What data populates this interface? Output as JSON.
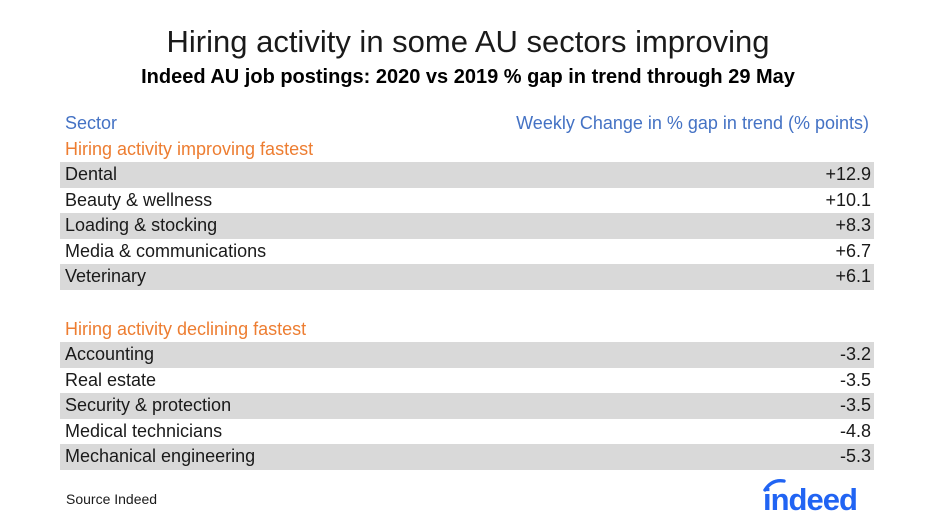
{
  "header": {
    "title": "Hiring activity in some AU sectors improving",
    "subtitle": "Indeed AU job postings: 2020 vs 2019 % gap in trend through 29 May"
  },
  "colors": {
    "header_text": "#4472c4",
    "section_text": "#ed7d31",
    "row_shade": "#d9d9d9",
    "logo_blue": "#2164f3"
  },
  "chart_data": {
    "type": "table",
    "columns": [
      "Sector",
      "Weekly Change in % gap in trend (% points)"
    ],
    "groups": [
      {
        "label": "Hiring activity improving fastest",
        "rows": [
          {
            "sector": "Dental",
            "value": "+12.9"
          },
          {
            "sector": "Beauty & wellness",
            "value": "+10.1"
          },
          {
            "sector": "Loading & stocking",
            "value": "+8.3"
          },
          {
            "sector": "Media & communications",
            "value": "+6.7"
          },
          {
            "sector": "Veterinary",
            "value": "+6.1"
          }
        ]
      },
      {
        "label": "Hiring activity declining fastest",
        "rows": [
          {
            "sector": "Accounting",
            "value": "-3.2"
          },
          {
            "sector": "Real estate",
            "value": "-3.5"
          },
          {
            "sector": "Security & protection",
            "value": "-3.5"
          },
          {
            "sector": "Medical technicians",
            "value": "-4.8"
          },
          {
            "sector": "Mechanical engineering",
            "value": "-5.3"
          }
        ]
      }
    ]
  },
  "footer": {
    "source": "Source Indeed",
    "logo_text": "indeed",
    "logo_icon": "indeed-logo-arc"
  }
}
